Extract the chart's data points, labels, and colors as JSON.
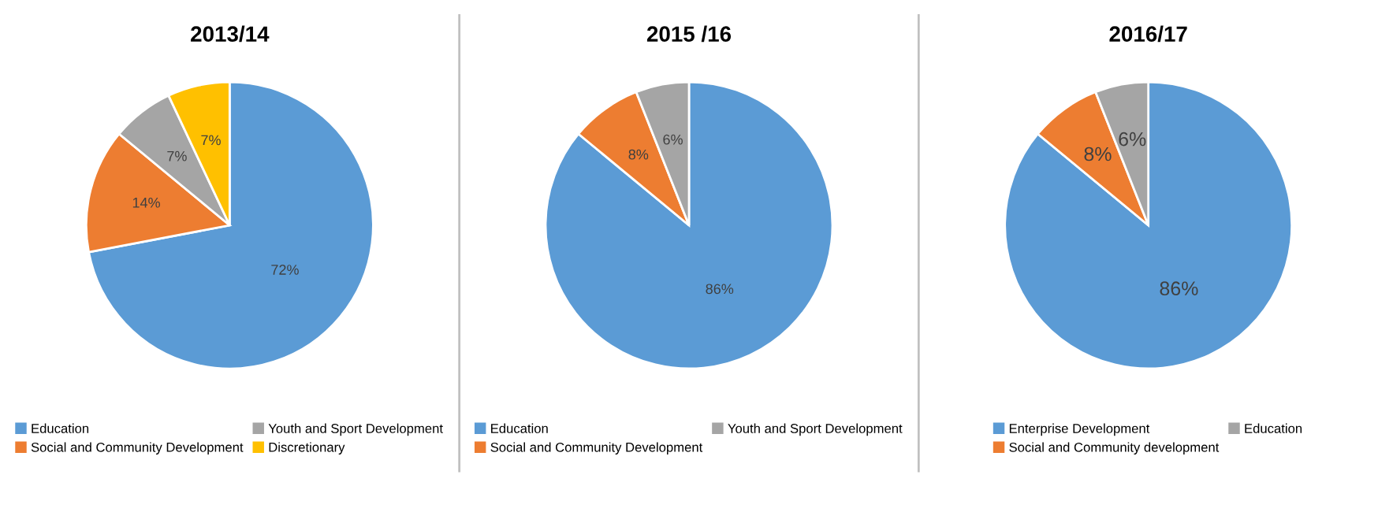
{
  "chart_data": [
    {
      "type": "pie",
      "title": "2013/14",
      "categories": [
        "Education",
        "Social and Community Development",
        "Youth and Sport Development",
        "Discretionary"
      ],
      "values": [
        72,
        14,
        7,
        7
      ],
      "colors": [
        "#5b9bd5",
        "#ed7d31",
        "#a5a5a5",
        "#ffc000"
      ],
      "value_labels": [
        "72%",
        "14%",
        "7%",
        "7%"
      ],
      "legend": "bottom"
    },
    {
      "type": "pie",
      "title": "2015 /16",
      "categories": [
        "Education",
        "Social and Community Development",
        "Youth and Sport Development"
      ],
      "values": [
        86,
        8,
        6
      ],
      "colors": [
        "#5b9bd5",
        "#ed7d31",
        "#a5a5a5"
      ],
      "value_labels": [
        "86%",
        "8%",
        "6%"
      ],
      "legend": "bottom"
    },
    {
      "type": "pie",
      "title": "2016/17",
      "categories": [
        "Enterprise Development",
        "Social and Community development",
        "Education"
      ],
      "values": [
        86,
        8,
        6
      ],
      "colors": [
        "#5b9bd5",
        "#ed7d31",
        "#a5a5a5"
      ],
      "value_labels": [
        "86%",
        "8%",
        "6%"
      ],
      "legend": "bottom"
    }
  ]
}
